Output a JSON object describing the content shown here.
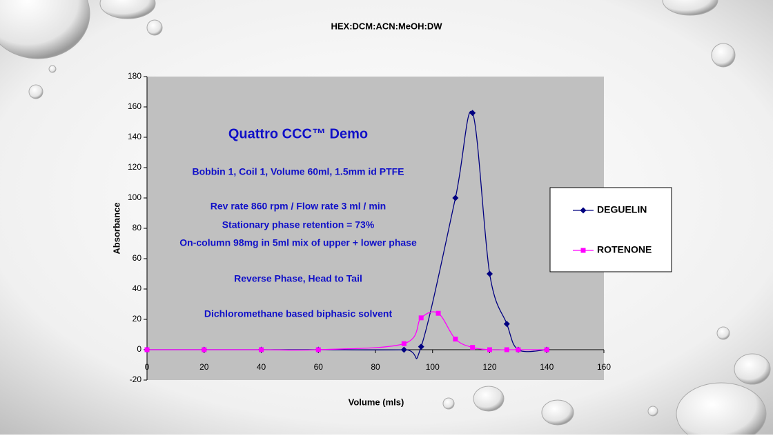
{
  "chart_data": {
    "type": "line",
    "title": "HEX:DCM:ACN:MeOH:DW",
    "xlabel": "Volume (mls)",
    "ylabel": "Absorbance",
    "xlim": [
      0,
      160
    ],
    "xticks": [
      0,
      20,
      40,
      60,
      80,
      100,
      120,
      140,
      160
    ],
    "ylim": [
      -20,
      180
    ],
    "yticks": [
      -20,
      0,
      20,
      40,
      60,
      80,
      100,
      120,
      140,
      160,
      180
    ],
    "legend": "right",
    "annotations": [
      "Quattro CCC™ Demo",
      "Bobbin 1, Coil 1, Volume 60ml, 1.5mm id PTFE",
      "Rev rate 860 rpm / Flow rate 3 ml / min",
      "Stationary phase retention = 73%",
      "On-column 98mg in 5ml mix of upper + lower phase",
      "Reverse Phase, Head to Tail",
      "Dichloromethane based biphasic solvent"
    ],
    "series": [
      {
        "name": "DEGUELIN",
        "color": "#000080",
        "marker": "diamond",
        "x": [
          0,
          20,
          40,
          60,
          90,
          96,
          108,
          114,
          120,
          126,
          130,
          140
        ],
        "values": [
          0,
          0,
          0,
          0,
          0,
          2,
          100,
          156,
          50,
          17,
          0,
          0
        ]
      },
      {
        "name": "ROTENONE",
        "color": "#ff00ff",
        "marker": "square",
        "x": [
          0,
          20,
          40,
          60,
          90,
          96,
          102,
          108,
          114,
          120,
          126,
          130,
          140
        ],
        "values": [
          0,
          0,
          0,
          0,
          4,
          21,
          24,
          7,
          1.5,
          0,
          0,
          0,
          0
        ]
      }
    ]
  }
}
